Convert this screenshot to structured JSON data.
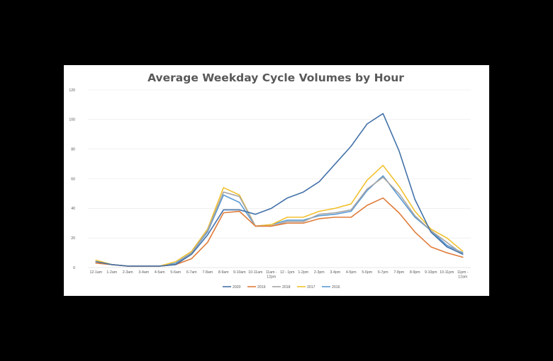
{
  "chart_data": {
    "type": "line",
    "title": "Average Weekday Cycle Volumes by Hour",
    "xlabel": "",
    "ylabel": "",
    "ylim": [
      0,
      120
    ],
    "yticks": [
      0,
      20,
      40,
      60,
      80,
      100,
      120
    ],
    "grid": true,
    "legend_position": "bottom",
    "categories": [
      [
        "12-1am"
      ],
      [
        "1-2am"
      ],
      [
        "2-3am"
      ],
      [
        "3-4am"
      ],
      [
        "4-5am"
      ],
      [
        "5-6am"
      ],
      [
        "6-7am"
      ],
      [
        "7-8am"
      ],
      [
        "8-9am"
      ],
      [
        "9-10am"
      ],
      [
        "10-11am"
      ],
      [
        "11am -",
        "12pm"
      ],
      [
        "12 - 1pm"
      ],
      [
        "1-2pm"
      ],
      [
        "2-3pm"
      ],
      [
        "3-4pm"
      ],
      [
        "4-5pm"
      ],
      [
        "5-6pm"
      ],
      [
        "6-7pm"
      ],
      [
        "7-8pm"
      ],
      [
        "8-9pm"
      ],
      [
        "9-10pm"
      ],
      [
        "10-11pm"
      ],
      [
        "11pm -",
        "12am"
      ]
    ],
    "series": [
      {
        "name": "2020",
        "color": "#4472a8",
        "values": [
          4,
          2,
          1,
          1,
          1,
          2,
          9,
          22,
          39,
          39,
          36,
          40,
          47,
          51,
          58,
          70,
          82,
          97,
          104,
          79,
          46,
          24,
          14,
          9
        ]
      },
      {
        "name": "2019",
        "color": "#e07b39",
        "values": [
          3,
          2,
          1,
          1,
          1,
          2,
          6,
          17,
          37,
          38,
          28,
          28,
          30,
          30,
          33,
          34,
          34,
          42,
          47,
          37,
          24,
          14,
          10,
          7
        ]
      },
      {
        "name": "2018",
        "color": "#a5a5a5",
        "values": [
          4,
          2,
          1,
          1,
          1,
          2,
          10,
          25,
          51,
          48,
          28,
          28,
          31,
          31,
          36,
          37,
          39,
          53,
          61,
          50,
          35,
          25,
          17,
          9
        ]
      },
      {
        "name": "2017",
        "color": "#f2c12e",
        "values": [
          5,
          2,
          1,
          1,
          1,
          4,
          11,
          26,
          54,
          49,
          28,
          29,
          34,
          34,
          38,
          40,
          43,
          59,
          69,
          55,
          38,
          26,
          20,
          11
        ]
      },
      {
        "name": "2016",
        "color": "#5b9bd5",
        "values": [
          4,
          2,
          1,
          1,
          1,
          3,
          10,
          24,
          49,
          44,
          28,
          29,
          32,
          32,
          35,
          36,
          38,
          52,
          62,
          48,
          34,
          25,
          15,
          10
        ]
      }
    ]
  }
}
